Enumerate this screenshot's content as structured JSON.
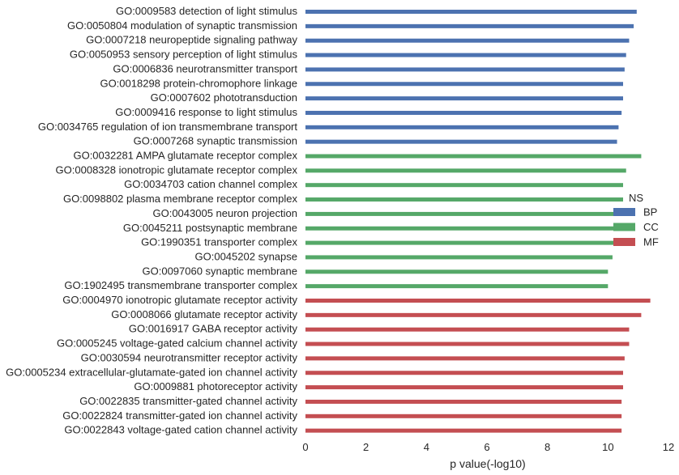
{
  "chart_data": {
    "type": "bar",
    "orientation": "horizontal",
    "xlabel": "p value(-log10)",
    "ylabel": "",
    "xlim": [
      0,
      12
    ],
    "xticks": [
      "0",
      "2",
      "4",
      "6",
      "8",
      "10",
      "12"
    ],
    "grid": false,
    "legend": {
      "title": "NS",
      "placement": "right"
    },
    "series": [
      {
        "name": "BP",
        "color": "#4c72b0"
      },
      {
        "name": "CC",
        "color": "#55a868"
      },
      {
        "name": "MF",
        "color": "#c44e52"
      }
    ],
    "bars": [
      {
        "label": "GO:0009583 detection of light stimulus",
        "value": 10.95,
        "group": "BP"
      },
      {
        "label": "GO:0050804 modulation of synaptic transmission",
        "value": 10.85,
        "group": "BP"
      },
      {
        "label": "GO:0007218 neuropeptide signaling pathway",
        "value": 10.7,
        "group": "BP"
      },
      {
        "label": "GO:0050953 sensory perception of light stimulus",
        "value": 10.6,
        "group": "BP"
      },
      {
        "label": "GO:0006836 neurotransmitter transport",
        "value": 10.55,
        "group": "BP"
      },
      {
        "label": "GO:0018298 protein-chromophore linkage",
        "value": 10.5,
        "group": "BP"
      },
      {
        "label": "GO:0007602 phototransduction",
        "value": 10.5,
        "group": "BP"
      },
      {
        "label": "GO:0009416 response to light stimulus",
        "value": 10.45,
        "group": "BP"
      },
      {
        "label": "GO:0034765 regulation of ion transmembrane transport",
        "value": 10.35,
        "group": "BP"
      },
      {
        "label": "GO:0007268 synaptic transmission",
        "value": 10.3,
        "group": "BP"
      },
      {
        "label": "GO:0032281 AMPA glutamate receptor complex",
        "value": 11.1,
        "group": "CC"
      },
      {
        "label": "GO:0008328 ionotropic glutamate receptor complex",
        "value": 10.6,
        "group": "CC"
      },
      {
        "label": "GO:0034703 cation channel complex",
        "value": 10.5,
        "group": "CC"
      },
      {
        "label": "GO:0098802 plasma membrane receptor complex",
        "value": 10.5,
        "group": "CC"
      },
      {
        "label": "GO:0043005 neuron projection",
        "value": 10.45,
        "group": "CC"
      },
      {
        "label": "GO:0045211 postsynaptic membrane",
        "value": 10.3,
        "group": "CC"
      },
      {
        "label": "GO:1990351 transporter complex",
        "value": 10.3,
        "group": "CC"
      },
      {
        "label": "GO:0045202 synapse",
        "value": 10.15,
        "group": "CC"
      },
      {
        "label": "GO:0097060 synaptic membrane",
        "value": 10.0,
        "group": "CC"
      },
      {
        "label": "GO:1902495 transmembrane transporter complex",
        "value": 10.0,
        "group": "CC"
      },
      {
        "label": "GO:0004970 ionotropic glutamate receptor activity",
        "value": 11.4,
        "group": "MF"
      },
      {
        "label": "GO:0008066 glutamate receptor activity",
        "value": 11.1,
        "group": "MF"
      },
      {
        "label": "GO:0016917 GABA receptor activity",
        "value": 10.7,
        "group": "MF"
      },
      {
        "label": "GO:0005245 voltage-gated calcium channel activity",
        "value": 10.7,
        "group": "MF"
      },
      {
        "label": "GO:0030594 neurotransmitter receptor activity",
        "value": 10.55,
        "group": "MF"
      },
      {
        "label": "GO:0005234 extracellular-glutamate-gated ion channel activity",
        "value": 10.5,
        "group": "MF"
      },
      {
        "label": "GO:0009881 photoreceptor activity",
        "value": 10.5,
        "group": "MF"
      },
      {
        "label": "GO:0022835 transmitter-gated channel activity",
        "value": 10.45,
        "group": "MF"
      },
      {
        "label": "GO:0022824 transmitter-gated ion channel activity",
        "value": 10.45,
        "group": "MF"
      },
      {
        "label": "GO:0022843 voltage-gated cation channel activity",
        "value": 10.45,
        "group": "MF"
      }
    ]
  }
}
